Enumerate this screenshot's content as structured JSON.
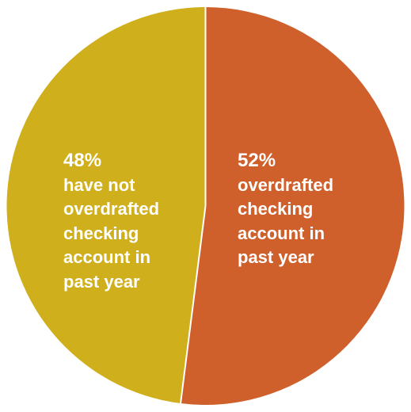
{
  "chart_data": {
    "type": "pie",
    "slices": [
      {
        "value": 52,
        "percent_label": "52%",
        "label": "overdrafted\nchecking\naccount in\npast year",
        "color": "#cf602c"
      },
      {
        "value": 48,
        "percent_label": "48%",
        "label": "have not\noverdrafted\nchecking\naccount in\npast year",
        "color": "#cfaf1c"
      }
    ],
    "separator_color": "#ffffff"
  }
}
